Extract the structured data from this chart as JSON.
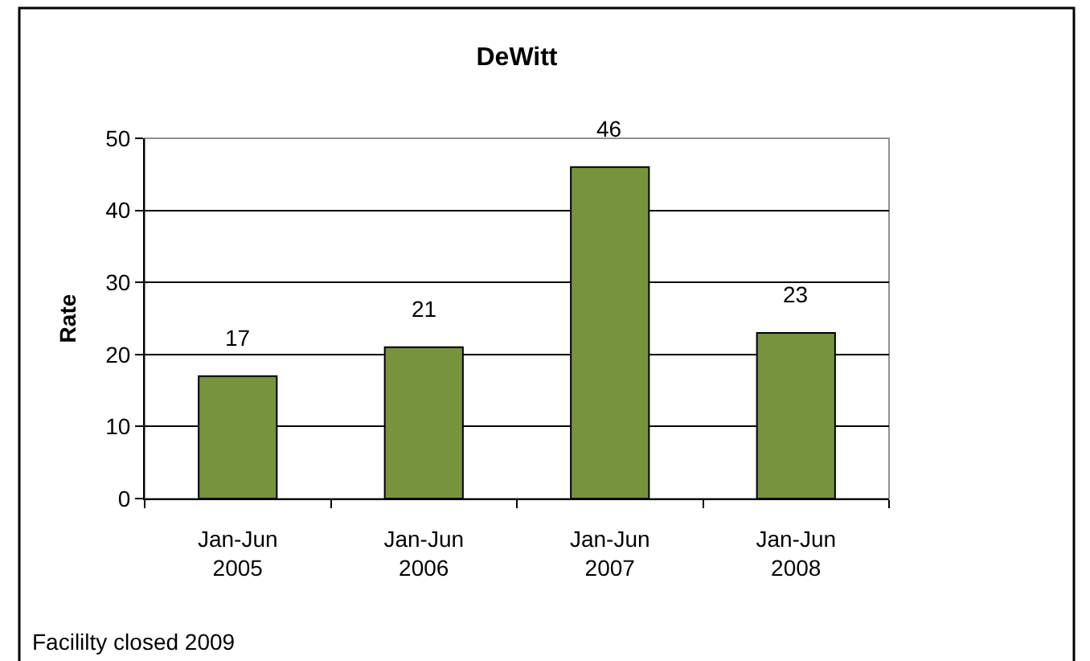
{
  "chart_data": {
    "type": "bar",
    "title": "DeWitt",
    "ylabel": "Rate",
    "categories": [
      "Jan-Jun\n2005",
      "Jan-Jun\n2006",
      "Jan-Jun\n2007",
      "Jan-Jun\n2008"
    ],
    "values": [
      17,
      21,
      46,
      23
    ],
    "color": "#77933c",
    "ylim": [
      0,
      50
    ],
    "yticks": [
      0,
      10,
      20,
      30,
      40,
      50
    ],
    "grid": "y",
    "legend": false,
    "data_labels": true,
    "annotations": [
      "Facililty closed 2009"
    ]
  }
}
